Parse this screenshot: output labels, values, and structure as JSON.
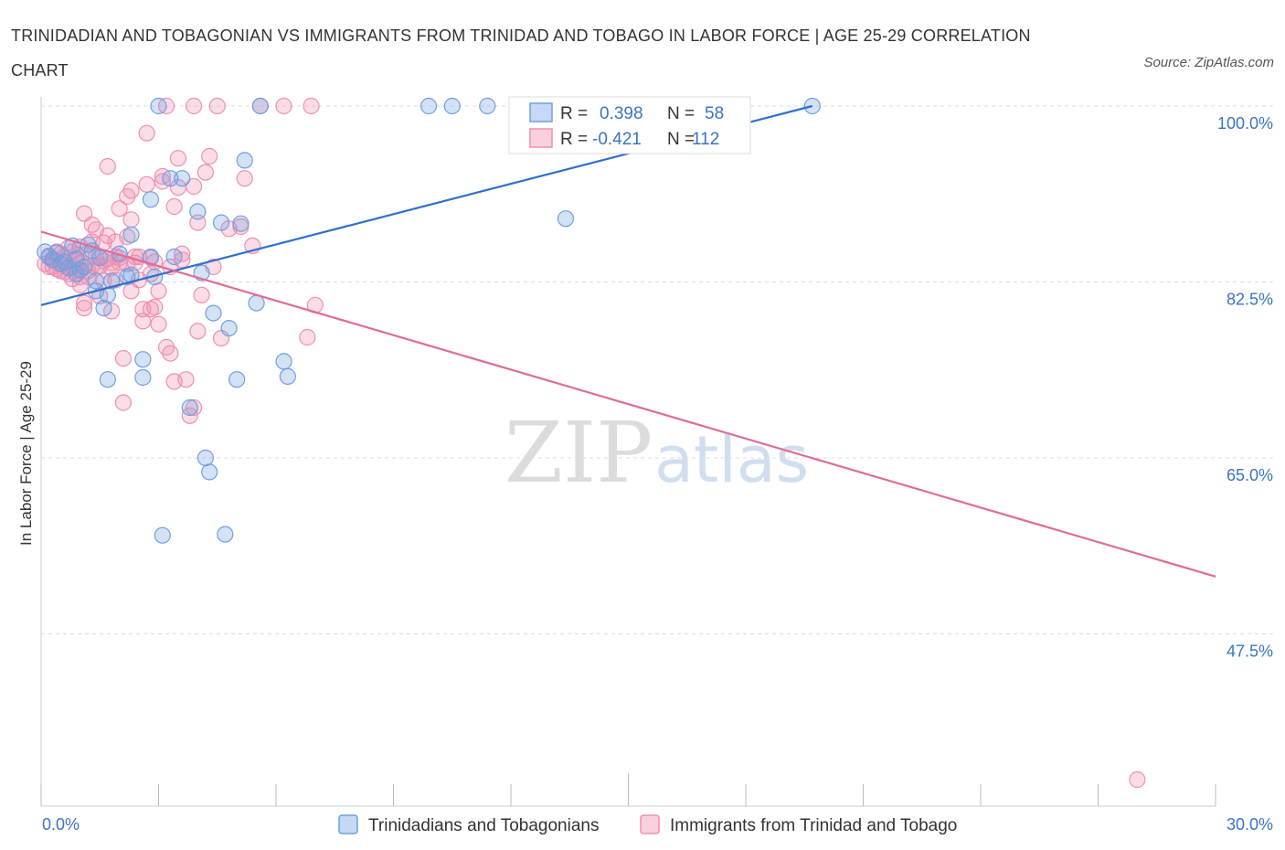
{
  "title": "TRINIDADIAN AND TOBAGONIAN VS IMMIGRANTS FROM TRINIDAD AND TOBAGO IN LABOR FORCE | AGE 25-29 CORRELATION CHART",
  "source": "Source: ZipAtlas.com",
  "watermark": {
    "zip": "ZIP",
    "atlas": "atlas"
  },
  "colors": {
    "blue": "#6f9fe0",
    "blue_line": "#2f6fcc",
    "pink": "#f08fb0",
    "pink_line": "#e06b98",
    "grid": "#dddddd"
  },
  "stats": [
    {
      "r_label": "R =",
      "r_value": "0.398",
      "n_label": "N =",
      "n_value": "58"
    },
    {
      "r_label": "R =",
      "r_value": "-0.421",
      "n_label": "N =",
      "n_value": "112"
    }
  ],
  "chart_data": {
    "type": "scatter",
    "ylabel": "In Labor Force | Age 25-29",
    "xlabel": "",
    "xlim": [
      0.0,
      30.0
    ],
    "ylim": [
      30.0,
      100.0
    ],
    "x_tick_labels": [
      {
        "value": 0,
        "label": "0.0%"
      },
      {
        "value": 30,
        "label": "30.0%"
      }
    ],
    "y_tick_labels": [
      {
        "value": 100,
        "label": "100.0%"
      },
      {
        "value": 82.5,
        "label": "82.5%"
      },
      {
        "value": 65,
        "label": "65.0%"
      },
      {
        "value": 47.5,
        "label": "47.5%"
      }
    ],
    "grid": "horizontal-dashed",
    "legend_position": "bottom",
    "series": [
      {
        "name": "Trinidadians and Tobagonians",
        "color": "#6f9fe0",
        "trend": {
          "x": [
            0.0,
            19.7
          ],
          "y": [
            80.2,
            100.0
          ]
        },
        "points": [
          [
            0.1,
            85.5
          ],
          [
            0.2,
            85.0
          ],
          [
            0.3,
            84.7
          ],
          [
            0.5,
            84.3
          ],
          [
            0.6,
            84.5
          ],
          [
            0.7,
            83.9
          ],
          [
            0.8,
            86.1
          ],
          [
            0.9,
            84.8
          ],
          [
            1.0,
            83.7
          ],
          [
            1.1,
            84.0
          ],
          [
            1.2,
            86.2
          ],
          [
            1.3,
            85.6
          ],
          [
            1.4,
            82.6
          ],
          [
            1.4,
            81.6
          ],
          [
            1.6,
            79.9
          ],
          [
            1.7,
            81.2
          ],
          [
            1.7,
            72.8
          ],
          [
            1.8,
            82.6
          ],
          [
            2.2,
            83.0
          ],
          [
            2.3,
            87.2
          ],
          [
            2.3,
            83.2
          ],
          [
            2.6,
            73.0
          ],
          [
            2.6,
            74.8
          ],
          [
            2.8,
            90.7
          ],
          [
            2.8,
            85.0
          ],
          [
            2.9,
            83.0
          ],
          [
            3.0,
            100.0
          ],
          [
            3.1,
            57.3
          ],
          [
            3.3,
            92.8
          ],
          [
            3.6,
            92.8
          ],
          [
            4.0,
            89.5
          ],
          [
            3.8,
            70.0
          ],
          [
            4.1,
            83.4
          ],
          [
            4.2,
            65.0
          ],
          [
            4.3,
            63.6
          ],
          [
            4.4,
            79.4
          ],
          [
            4.6,
            88.4
          ],
          [
            4.8,
            77.9
          ],
          [
            5.0,
            72.8
          ],
          [
            5.1,
            88.3
          ],
          [
            5.2,
            94.6
          ],
          [
            4.7,
            57.4
          ],
          [
            5.6,
            100.0
          ],
          [
            5.5,
            80.4
          ],
          [
            6.2,
            74.6
          ],
          [
            6.3,
            73.1
          ],
          [
            9.9,
            100.0
          ],
          [
            10.5,
            100.0
          ],
          [
            11.4,
            100.0
          ],
          [
            13.2,
            100.0
          ],
          [
            13.6,
            100.0
          ],
          [
            13.4,
            88.8
          ],
          [
            19.7,
            100.0
          ],
          [
            0.4,
            85.4
          ],
          [
            0.9,
            83.3
          ],
          [
            1.5,
            84.9
          ],
          [
            2.0,
            85.3
          ],
          [
            3.4,
            85.0
          ]
        ]
      },
      {
        "name": "Immigrants from Trinidad and Tobago",
        "color": "#f08fb0",
        "trend": {
          "x": [
            0.0,
            30.0
          ],
          "y": [
            87.5,
            53.2
          ]
        },
        "points": [
          [
            0.1,
            84.3
          ],
          [
            0.2,
            85.1
          ],
          [
            0.2,
            84.0
          ],
          [
            0.3,
            84.8
          ],
          [
            0.4,
            85.5
          ],
          [
            0.4,
            83.8
          ],
          [
            0.5,
            84.6
          ],
          [
            0.5,
            83.6
          ],
          [
            0.6,
            85.0
          ],
          [
            0.6,
            84.2
          ],
          [
            0.7,
            83.3
          ],
          [
            0.7,
            85.9
          ],
          [
            0.8,
            84.0
          ],
          [
            0.8,
            82.8
          ],
          [
            0.9,
            85.2
          ],
          [
            0.9,
            83.7
          ],
          [
            1.0,
            86.0
          ],
          [
            1.0,
            84.4
          ],
          [
            1.0,
            82.2
          ],
          [
            1.1,
            80.4
          ],
          [
            1.1,
            79.9
          ],
          [
            1.1,
            89.3
          ],
          [
            1.2,
            83.6
          ],
          [
            1.2,
            85.4
          ],
          [
            1.3,
            86.5
          ],
          [
            1.3,
            84.1
          ],
          [
            1.3,
            88.2
          ],
          [
            1.4,
            87.7
          ],
          [
            1.4,
            85.0
          ],
          [
            1.5,
            84.1
          ],
          [
            1.5,
            81.1
          ],
          [
            1.6,
            82.6
          ],
          [
            1.6,
            86.4
          ],
          [
            1.7,
            87.1
          ],
          [
            1.7,
            84.8
          ],
          [
            1.7,
            94.0
          ],
          [
            1.8,
            84.4
          ],
          [
            1.8,
            79.6
          ],
          [
            1.9,
            85.0
          ],
          [
            1.9,
            82.7
          ],
          [
            2.0,
            89.8
          ],
          [
            2.0,
            84.4
          ],
          [
            2.0,
            84.9
          ],
          [
            2.1,
            74.9
          ],
          [
            2.1,
            70.5
          ],
          [
            2.2,
            91.0
          ],
          [
            2.2,
            87.0
          ],
          [
            2.3,
            88.7
          ],
          [
            2.3,
            91.6
          ],
          [
            2.4,
            85.0
          ],
          [
            2.4,
            84.4
          ],
          [
            2.5,
            82.7
          ],
          [
            2.6,
            79.8
          ],
          [
            2.6,
            78.6
          ],
          [
            2.7,
            97.3
          ],
          [
            2.7,
            92.2
          ],
          [
            2.8,
            84.9
          ],
          [
            2.8,
            83.3
          ],
          [
            2.9,
            80.0
          ],
          [
            3.0,
            78.3
          ],
          [
            3.0,
            81.6
          ],
          [
            3.1,
            93.0
          ],
          [
            3.1,
            92.5
          ],
          [
            3.2,
            76.0
          ],
          [
            3.3,
            75.4
          ],
          [
            3.4,
            72.6
          ],
          [
            3.4,
            90.0
          ],
          [
            3.5,
            91.9
          ],
          [
            3.5,
            94.8
          ],
          [
            3.6,
            85.3
          ],
          [
            3.6,
            84.7
          ],
          [
            3.7,
            72.8
          ],
          [
            3.8,
            69.2
          ],
          [
            3.9,
            70.0
          ],
          [
            3.9,
            92.0
          ],
          [
            4.0,
            88.4
          ],
          [
            4.0,
            77.6
          ],
          [
            4.1,
            81.2
          ],
          [
            4.2,
            93.4
          ],
          [
            4.3,
            95.0
          ],
          [
            4.4,
            84.0
          ],
          [
            4.5,
            100.0
          ],
          [
            4.6,
            76.9
          ],
          [
            4.8,
            87.8
          ],
          [
            5.1,
            88.0
          ],
          [
            5.2,
            92.8
          ],
          [
            5.4,
            86.1
          ],
          [
            5.6,
            100.0
          ],
          [
            6.2,
            100.0
          ],
          [
            6.9,
            100.0
          ],
          [
            6.8,
            77.0
          ],
          [
            7.0,
            80.2
          ],
          [
            3.2,
            100.0
          ],
          [
            3.9,
            100.0
          ],
          [
            1.6,
            84.6
          ],
          [
            0.3,
            84.0
          ],
          [
            0.5,
            85.3
          ],
          [
            0.9,
            84.8
          ],
          [
            1.2,
            83.0
          ],
          [
            1.4,
            83.9
          ],
          [
            2.5,
            85.0
          ],
          [
            2.9,
            84.5
          ],
          [
            3.3,
            84.0
          ],
          [
            1.8,
            83.9
          ],
          [
            0.8,
            85.5
          ],
          [
            1.9,
            86.5
          ],
          [
            2.2,
            84.3
          ],
          [
            0.6,
            83.5
          ],
          [
            1.0,
            83.0
          ],
          [
            28.0,
            33.0
          ],
          [
            2.3,
            81.6
          ],
          [
            2.8,
            79.8
          ]
        ]
      }
    ]
  }
}
